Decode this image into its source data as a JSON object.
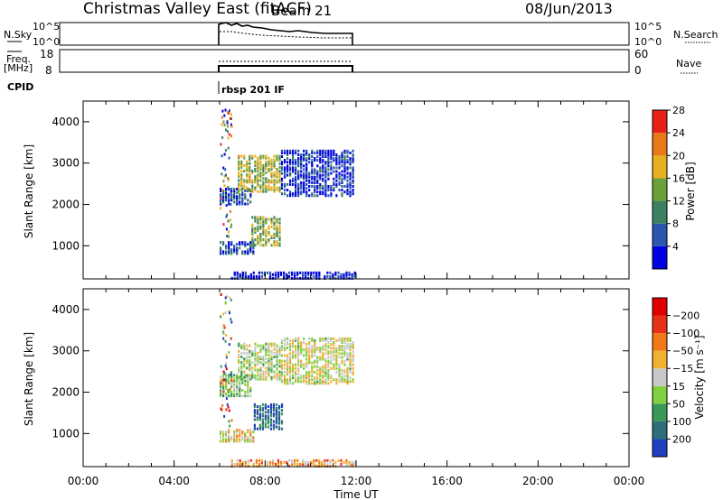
{
  "header": {
    "title": "Christmas Valley East (fitACF)",
    "beam": "Beam 21",
    "date": "08/Jun/2013"
  },
  "top_panels": {
    "nsky_label": "N.Sky",
    "nsky_ticks": [
      "10^5",
      "10^0"
    ],
    "nsearch_label": "N.Search",
    "nsearch_ticks": [
      "10^5",
      "10^0"
    ],
    "freq_label": "Freq.",
    "freq_unit": "[MHz]",
    "freq_ticks": [
      "18",
      "8"
    ],
    "nave_label": "Nave",
    "nave_ticks": [
      "60",
      "0"
    ],
    "cpid_label": "CPID",
    "cpid_value": "rbsp 201 IF"
  },
  "chart_data": [
    {
      "type": "heatmap",
      "name": "power",
      "ylabel": "Slant Range [km]",
      "yticks": [
        1000,
        2000,
        3000,
        4000
      ],
      "ylim": [
        200,
        4500
      ],
      "xlim": [
        0,
        24
      ],
      "colorbar_label": "Power [dB]",
      "colorbar_ticks": [
        "4",
        "8",
        "12",
        "16",
        "20",
        "24",
        "28"
      ],
      "colorbar_colors": [
        "#0000e0",
        "#2a56b0",
        "#3b8060",
        "#6aa038",
        "#e8b020",
        "#e87818",
        "#e82018"
      ],
      "echo_bands": [
        {
          "t_start": 6.0,
          "t_end": 7.4,
          "r_start": 2000,
          "r_end": 2400,
          "level": 0.2
        },
        {
          "t_start": 6.8,
          "t_end": 8.7,
          "r_start": 2300,
          "r_end": 3200,
          "level": 0.55
        },
        {
          "t_start": 8.7,
          "t_end": 11.9,
          "r_start": 2200,
          "r_end": 3300,
          "level": 0.15
        },
        {
          "t_start": 6.0,
          "t_end": 7.5,
          "r_start": 800,
          "r_end": 1100,
          "level": 0.2
        },
        {
          "t_start": 7.4,
          "t_end": 8.7,
          "r_start": 1000,
          "r_end": 1700,
          "level": 0.5
        },
        {
          "t_start": 6.5,
          "t_end": 11.9,
          "r_start": 200,
          "r_end": 350,
          "level": 0.1
        }
      ]
    },
    {
      "type": "heatmap",
      "name": "velocity",
      "ylabel": "Slant Range [km]",
      "yticks": [
        1000,
        2000,
        3000,
        4000
      ],
      "ylim": [
        200,
        4500
      ],
      "xlim": [
        0,
        24
      ],
      "xticks": [
        "00:00",
        "04:00",
        "08:00",
        "12:00",
        "16:00",
        "20:00",
        "00:00"
      ],
      "xlabel": "Time UT",
      "colorbar_label": "Velocity [m s⁻¹]",
      "colorbar_ticks": [
        "200",
        "100",
        "50",
        "15",
        "−15",
        "−50",
        "−100",
        "−200"
      ],
      "colorbar_colors": [
        "#2040c0",
        "#2e6e7a",
        "#3a9858",
        "#80d040",
        "#c8c8c8",
        "#f0b030",
        "#f07818",
        "#e83018",
        "#e00000"
      ],
      "echo_bands": [
        {
          "t_start": 6.0,
          "t_end": 7.4,
          "r_start": 1900,
          "r_end": 2400,
          "level": 0.4
        },
        {
          "t_start": 6.8,
          "t_end": 8.7,
          "r_start": 2300,
          "r_end": 3200,
          "level": 0.45
        },
        {
          "t_start": 8.7,
          "t_end": 11.9,
          "r_start": 2200,
          "r_end": 3300,
          "level": 0.5
        },
        {
          "t_start": 6.0,
          "t_end": 7.5,
          "r_start": 800,
          "r_end": 1100,
          "level": 0.55
        },
        {
          "t_start": 7.5,
          "t_end": 8.7,
          "r_start": 1100,
          "r_end": 1700,
          "level": 0.15
        },
        {
          "t_start": 6.5,
          "t_end": 11.9,
          "r_start": 200,
          "r_end": 350,
          "level": 0.65
        }
      ]
    }
  ]
}
